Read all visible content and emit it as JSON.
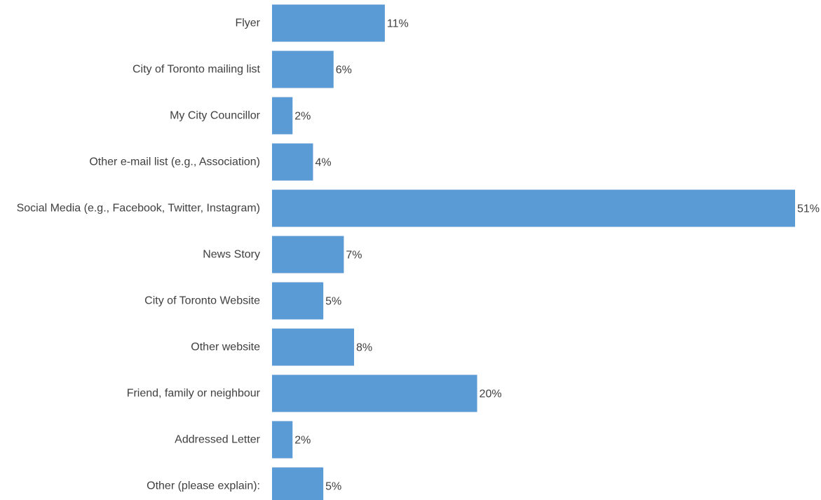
{
  "chart_data": {
    "type": "bar",
    "orientation": "horizontal",
    "title": "",
    "xlabel": "",
    "ylabel": "",
    "grid": false,
    "legend": "none",
    "value_suffix": "%",
    "xlim": [
      0,
      51
    ],
    "bar_color": "#5b9bd5",
    "categories": [
      "Flyer",
      "City of Toronto mailing list",
      "My City Councillor",
      "Other e-mail list (e.g., Association)",
      "Social Media (e.g., Facebook, Twitter, Instagram)",
      "News Story",
      "City of Toronto Website",
      "Other website",
      "Friend, family or neighbour",
      "Addressed Letter",
      "Other (please explain):"
    ],
    "values": [
      11,
      6,
      2,
      4,
      51,
      7,
      5,
      8,
      20,
      2,
      5
    ],
    "data_labels": [
      "11%",
      "6%",
      "2%",
      "4%",
      "51%",
      "7%",
      "5%",
      "8%",
      "20%",
      "2%",
      "5%"
    ]
  }
}
